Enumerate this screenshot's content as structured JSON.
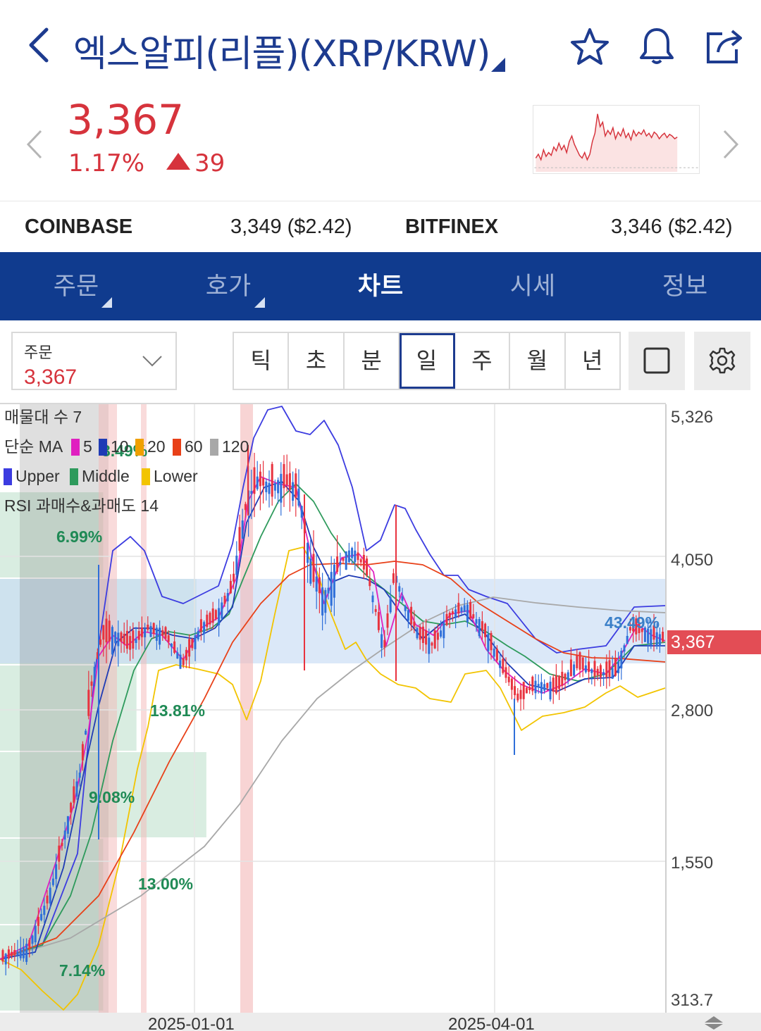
{
  "header": {
    "title": "엑스알피(리플)(XRP/KRW)",
    "icons": [
      "back-arrow-icon",
      "star-icon",
      "bell-icon",
      "share-icon"
    ]
  },
  "price": {
    "current": "3,367",
    "change_pct": "1.17%",
    "change_abs": "39",
    "direction": "up",
    "color": "#d6333c"
  },
  "sparkline": [
    0.15,
    0.22,
    0.12,
    0.3,
    0.18,
    0.25,
    0.2,
    0.35,
    0.28,
    0.42,
    0.3,
    0.38,
    0.25,
    0.45,
    0.55,
    0.4,
    0.3,
    0.2,
    0.15,
    0.25,
    0.12,
    0.22,
    0.45,
    0.6,
    0.95,
    0.72,
    0.8,
    0.55,
    0.65,
    0.58,
    0.7,
    0.5,
    0.62,
    0.55,
    0.68,
    0.52,
    0.6,
    0.48,
    0.65,
    0.55,
    0.62,
    0.58,
    0.66,
    0.55,
    0.6,
    0.52,
    0.62,
    0.58,
    0.5,
    0.56,
    0.6,
    0.52,
    0.58,
    0.55,
    0.5,
    0.53
  ],
  "exchanges": [
    {
      "name": "COINBASE",
      "value": "3,349 ($2.42)"
    },
    {
      "name": "BITFINEX",
      "value": "3,346 ($2.42)"
    }
  ],
  "tabs": [
    {
      "label": "주문",
      "has_caret": true
    },
    {
      "label": "호가",
      "has_caret": true
    },
    {
      "label": "차트",
      "active": true
    },
    {
      "label": "시세"
    },
    {
      "label": "정보"
    }
  ],
  "toolbar": {
    "order_label": "주문",
    "order_value": "3,367",
    "periods": [
      "틱",
      "초",
      "분",
      "일",
      "주",
      "월",
      "년"
    ],
    "active_period": "일"
  },
  "chart_data": {
    "type": "candlestick",
    "y_axis_labels": [
      "5,326",
      "4,050",
      "2,800",
      "1,550",
      "313.7"
    ],
    "x_axis_labels": [
      "2025-01-01",
      "2025-04-01"
    ],
    "current_price_label": "3,367",
    "legend": {
      "volume_profile": "매물대 수 7",
      "ma_title": "단순 MA",
      "ma_periods": [
        {
          "label": "5",
          "color": "#e020c0"
        },
        {
          "label": "10",
          "color": "#1f3bb5"
        },
        {
          "label": "20",
          "color": "#f0a000"
        },
        {
          "label": "60",
          "color": "#e84018"
        },
        {
          "label": "120",
          "color": "#a8a8a8"
        }
      ],
      "bollinger": [
        {
          "label": "Upper",
          "color": "#3c3ce0"
        },
        {
          "label": "Middle",
          "color": "#2e9a5c"
        },
        {
          "label": "Lower",
          "color": "#f2c400"
        }
      ],
      "rsi": "RSI 과매수&과매도 14"
    },
    "volume_profile_bins": [
      {
        "label": "6.99%",
        "width_frac": 0.155
      },
      {
        "label": "",
        "width_frac": 0.155
      },
      {
        "label": "13.81%",
        "width_frac": 0.31
      },
      {
        "label": "9.08%",
        "width_frac": 0.205
      },
      {
        "label": "13.00%",
        "width_frac": 0.295
      },
      {
        "label": "7.14%",
        "width_frac": 0.155
      },
      {
        "label": "43.49%",
        "width_frac": 1.0
      }
    ],
    "hidden_label": "3.49%"
  }
}
